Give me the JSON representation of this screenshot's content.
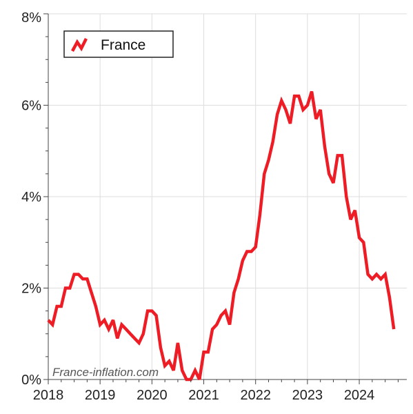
{
  "chart_data": {
    "type": "line",
    "title": "",
    "xlabel": "",
    "ylabel": "",
    "xlim": [
      2018,
      2024.917
    ],
    "ylim": [
      0,
      8
    ],
    "x_ticks": [
      2018,
      2019,
      2020,
      2021,
      2022,
      2023,
      2024
    ],
    "x_tick_labels": [
      "2018",
      "2019",
      "2020",
      "2021",
      "2022",
      "2023",
      "2024"
    ],
    "y_ticks": [
      0,
      2,
      4,
      6,
      8
    ],
    "y_tick_labels": [
      "0%",
      "2%",
      "4%",
      "6%",
      "8%"
    ],
    "grid": true,
    "legend": {
      "position": "top-left",
      "entries": [
        "France"
      ]
    },
    "watermark": "France-inflation.com",
    "series": [
      {
        "name": "France",
        "color": "#ee1c25",
        "x": [
          2018.0,
          2018.083,
          2018.167,
          2018.25,
          2018.333,
          2018.417,
          2018.5,
          2018.583,
          2018.667,
          2018.75,
          2018.833,
          2018.917,
          2019.0,
          2019.083,
          2019.167,
          2019.25,
          2019.333,
          2019.417,
          2019.5,
          2019.583,
          2019.667,
          2019.75,
          2019.833,
          2019.917,
          2020.0,
          2020.083,
          2020.167,
          2020.25,
          2020.333,
          2020.417,
          2020.5,
          2020.583,
          2020.667,
          2020.75,
          2020.833,
          2020.917,
          2021.0,
          2021.083,
          2021.167,
          2021.25,
          2021.333,
          2021.417,
          2021.5,
          2021.583,
          2021.667,
          2021.75,
          2021.833,
          2021.917,
          2022.0,
          2022.083,
          2022.167,
          2022.25,
          2022.333,
          2022.417,
          2022.5,
          2022.583,
          2022.667,
          2022.75,
          2022.833,
          2022.917,
          2023.0,
          2023.083,
          2023.167,
          2023.25,
          2023.333,
          2023.417,
          2023.5,
          2023.583,
          2023.667,
          2023.75,
          2023.833,
          2023.917,
          2024.0,
          2024.083,
          2024.167,
          2024.25,
          2024.333,
          2024.417,
          2024.5,
          2024.583,
          2024.667
        ],
        "y": [
          1.3,
          1.2,
          1.6,
          1.6,
          2.0,
          2.0,
          2.3,
          2.3,
          2.2,
          2.2,
          1.9,
          1.6,
          1.2,
          1.3,
          1.1,
          1.3,
          0.9,
          1.2,
          1.1,
          1.0,
          0.9,
          0.8,
          1.0,
          1.5,
          1.5,
          1.4,
          0.7,
          0.3,
          0.4,
          0.2,
          0.8,
          0.2,
          0.0,
          0.0,
          0.2,
          0.0,
          0.6,
          0.6,
          1.1,
          1.2,
          1.4,
          1.5,
          1.2,
          1.9,
          2.2,
          2.6,
          2.8,
          2.8,
          2.9,
          3.6,
          4.5,
          4.8,
          5.2,
          5.8,
          6.1,
          5.9,
          5.6,
          6.2,
          6.2,
          5.9,
          6.0,
          6.3,
          5.7,
          5.9,
          5.1,
          4.5,
          4.3,
          4.9,
          4.9,
          4.0,
          3.5,
          3.7,
          3.1,
          3.0,
          2.3,
          2.2,
          2.3,
          2.2,
          2.3,
          1.8,
          1.1
        ]
      }
    ]
  }
}
